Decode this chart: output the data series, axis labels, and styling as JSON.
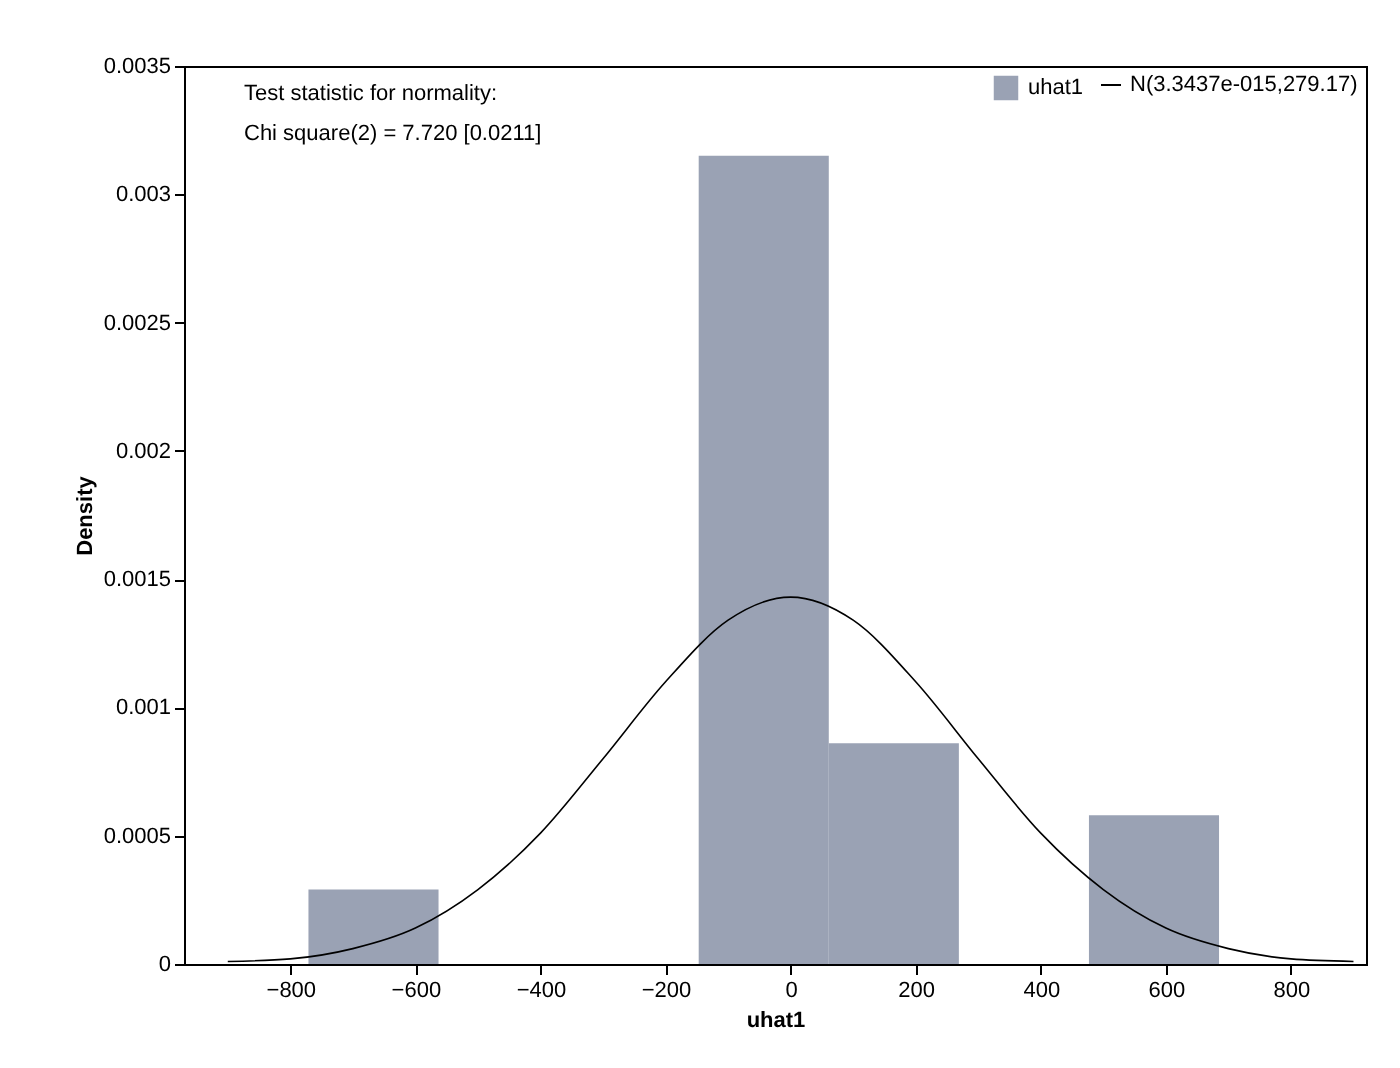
{
  "chart_data": {
    "type": "histogram",
    "xlabel": "uhat1",
    "ylabel": "Density",
    "annotations": [
      "Test statistic for normality:",
      "Chi square(2) = 7.720 [0.0211]"
    ],
    "bins": [
      -771,
      -563,
      -355,
      -147,
      61,
      269,
      477,
      685
    ],
    "series": [
      {
        "name": "uhat1",
        "color": "#9aa2b4",
        "values": [
          0.00029,
          0,
          0,
          0.00315,
          0.00086,
          0,
          0.00058
        ]
      },
      {
        "name": "N(3.3437e-015,279.17)",
        "type": "line",
        "color": "#000000",
        "x": [
          -900,
          -800,
          -700,
          -600,
          -500,
          -400,
          -300,
          -200,
          -100,
          0,
          100,
          200,
          300,
          400,
          500,
          600,
          700,
          800,
          900
        ],
        "values": [
          1e-05,
          2e-05,
          6e-05,
          0.00014,
          0.00029,
          0.00051,
          0.0008,
          0.0011,
          0.00134,
          0.00143,
          0.00134,
          0.0011,
          0.0008,
          0.00051,
          0.00029,
          0.00014,
          6e-05,
          2e-05,
          1e-05
        ]
      }
    ],
    "xlim": [
      -970,
      920
    ],
    "xticks": [
      -800,
      -600,
      -400,
      -200,
      0,
      200,
      400,
      600,
      800
    ],
    "ylim": [
      0,
      0.0035
    ],
    "yticks": [
      0,
      0.0005,
      0.001,
      0.0015,
      0.002,
      0.0025,
      0.003,
      0.0035
    ],
    "legend": "top right"
  }
}
